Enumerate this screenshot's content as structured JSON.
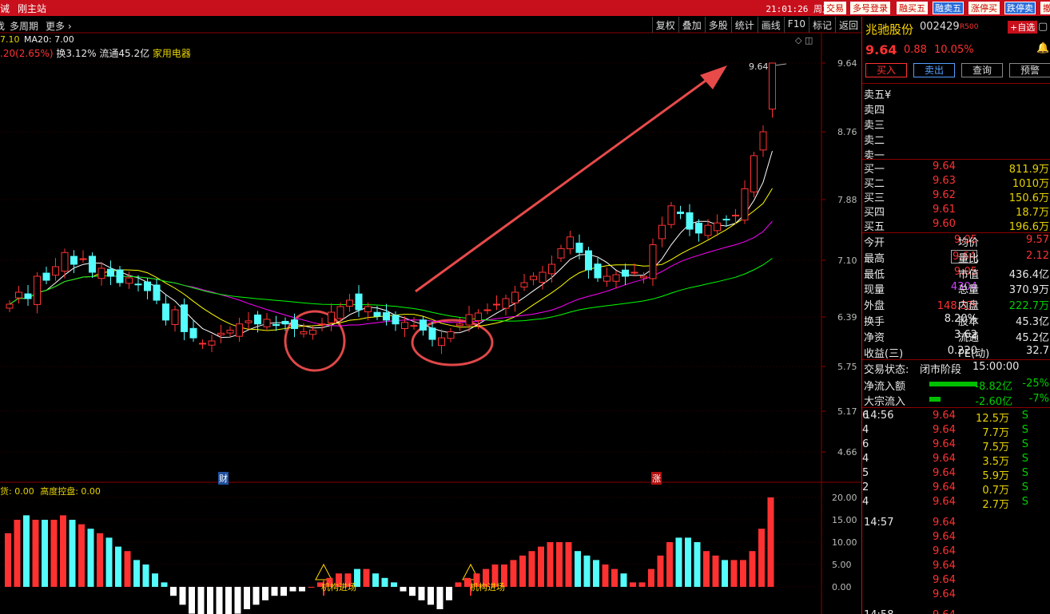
{
  "topbar": {
    "left_items": [
      "诫",
      "刚主站"
    ],
    "time": "21:01:26",
    "weekday": "周三",
    "buttons": [
      "交易",
      "多号登录",
      "融买五",
      "融卖五",
      "涨停买",
      "跌停卖",
      "撤"
    ]
  },
  "menu": {
    "items": [
      "找",
      "多周期",
      "更多"
    ],
    "toolbar": [
      "复权",
      "叠加",
      "多股",
      "统计",
      "画线",
      "F10",
      "标记",
      "返回"
    ]
  },
  "indicator_line1": {
    "ma10_fragment": "7.10",
    "ma20": "MA20: 7.00"
  },
  "indicator_line2": {
    "change": ".20(2.65%)",
    "turnover": "换3.12%",
    "float": "流通45.2亿",
    "industry": "家用电器"
  },
  "sub_indicator": {
    "label1": "货: 0.00",
    "label2": "高度控盘: 0.00"
  },
  "annotations": {
    "price_tag": "9.64",
    "marker_cai": "财",
    "marker_zhang": "涨",
    "signal1": "机构进场",
    "signal2": "机构进场"
  },
  "chart_data": {
    "type": "candlestick",
    "price_axis_ticks": [
      "9.64",
      "8.76",
      "7.88",
      "7.10",
      "6.39",
      "5.75",
      "5.17",
      "4.66"
    ],
    "volume_axis_ticks": [
      "20.00",
      "15.00",
      "10.00",
      "5.00",
      "0.00"
    ],
    "last_close": 9.64,
    "colors": {
      "up": "#ff3232",
      "down": "#54fcfc",
      "ma5": "#ffffff",
      "ma10": "#ffff00",
      "ma20": "#ff00ff",
      "ma60": "#00ff00"
    }
  },
  "stock": {
    "name": "兆驰股份",
    "code": "002429",
    "badge": "R500",
    "add_watch": "+自选",
    "price": "9.64",
    "change": "0.88",
    "pct": "10.05%",
    "buttons": [
      "买入",
      "卖出",
      "查询",
      "预警"
    ]
  },
  "order_book": {
    "sells": [
      {
        "label": "卖五",
        "extra": "¥"
      },
      {
        "label": "卖四",
        "extra": ""
      },
      {
        "label": "卖三",
        "extra": ""
      },
      {
        "label": "卖二",
        "extra": ""
      },
      {
        "label": "卖一",
        "extra": ""
      }
    ],
    "buys": [
      {
        "label": "买一",
        "price": "9.64",
        "vol": "811.9万"
      },
      {
        "label": "买二",
        "price": "9.63",
        "vol": "1010万"
      },
      {
        "label": "买三",
        "price": "9.62",
        "vol": "150.6万"
      },
      {
        "label": "买四",
        "price": "9.61",
        "vol": "18.7万"
      },
      {
        "label": "买五",
        "price": "9.60",
        "vol": "196.6万"
      }
    ]
  },
  "stats": [
    {
      "l1": "今开",
      "v1": "9.05",
      "l2": "均价",
      "v2": "9.57"
    },
    {
      "l1": "最高",
      "v1": "9.64",
      "l2": "量比",
      "v2": "2.12"
    },
    {
      "l1": "最低",
      "v1": "9.05",
      "l2": "市值",
      "v2": "436.4亿"
    },
    {
      "l1": "现量",
      "v1": "4304",
      "l2": "总量",
      "v2": "370.9万"
    },
    {
      "l1": "外盘",
      "v1": "148.3万",
      "l2": "内盘",
      "v2": "222.7万"
    },
    {
      "l1": "换手",
      "v1": "8.20%",
      "l2": "股本",
      "v2": "45.3亿"
    },
    {
      "l1": "净资",
      "v1": "3.62",
      "l2": "流通",
      "v2": "45.2亿"
    },
    {
      "l1": "收益(三)",
      "v1": "0.220",
      "l2": "PE(动)",
      "v2": "32.7"
    }
  ],
  "status": {
    "label": "交易状态:",
    "value": "闭市阶段",
    "time": "15:00:00"
  },
  "flows": [
    {
      "label": "净流入额",
      "value": "-8.82亿",
      "pct": "-25%"
    },
    {
      "label": "大宗流入",
      "value": "-2.60亿",
      "pct": "-7%"
    }
  ],
  "ticks": [
    {
      "time": "14:56",
      "price": "9.64",
      "vol": "12.5万",
      "flag": "S",
      "n": "6"
    },
    {
      "time": "",
      "price": "9.64",
      "vol": "7.7万",
      "flag": "S",
      "n": "4"
    },
    {
      "time": "",
      "price": "9.64",
      "vol": "7.5万",
      "flag": "S",
      "n": "6"
    },
    {
      "time": "",
      "price": "9.64",
      "vol": "3.5万",
      "flag": "S",
      "n": "4"
    },
    {
      "time": "",
      "price": "9.64",
      "vol": "5.9万",
      "flag": "S",
      "n": "5"
    },
    {
      "time": "",
      "price": "9.64",
      "vol": "0.7万",
      "flag": "S",
      "n": "2"
    },
    {
      "time": "",
      "price": "9.64",
      "vol": "2.7万",
      "flag": "S",
      "n": "4"
    },
    {
      "time": "14:57",
      "price": "9.64",
      "vol": "",
      "flag": "",
      "n": ""
    },
    {
      "time": "",
      "price": "9.64",
      "vol": "",
      "flag": "",
      "n": ""
    },
    {
      "time": "",
      "price": "9.64",
      "vol": "",
      "flag": "",
      "n": ""
    },
    {
      "time": "",
      "price": "9.64",
      "vol": "",
      "flag": "",
      "n": ""
    },
    {
      "time": "",
      "price": "9.64",
      "vol": "",
      "flag": "",
      "n": ""
    },
    {
      "time": "",
      "price": "9.64",
      "vol": "",
      "flag": "",
      "n": ""
    },
    {
      "time": "14:58",
      "price": "9.64",
      "vol": "",
      "flag": "",
      "n": ""
    }
  ]
}
